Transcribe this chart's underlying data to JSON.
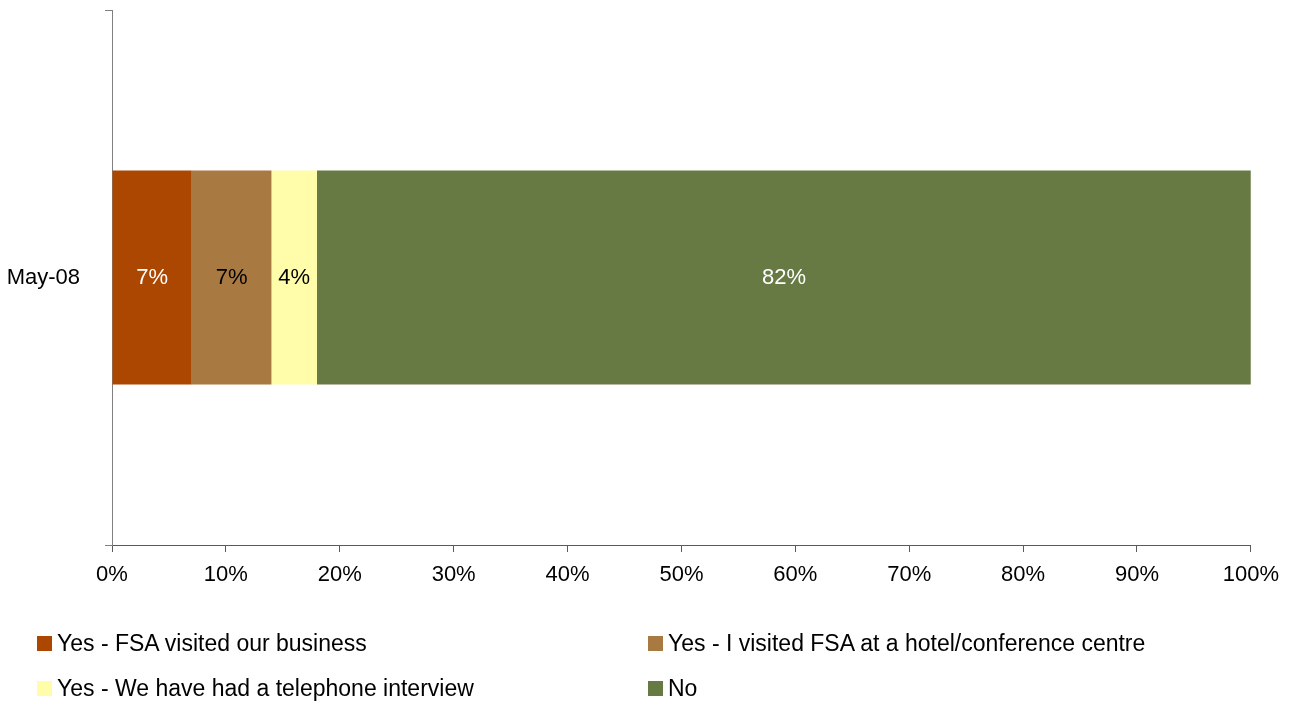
{
  "chart_data": {
    "type": "bar",
    "orientation": "horizontal",
    "stacked": true,
    "categories": [
      "May-08"
    ],
    "series": [
      {
        "name": "Yes - FSA visited our business",
        "color": "#ab4700",
        "values": [
          7
        ],
        "value_labels": [
          "7%"
        ]
      },
      {
        "name": "Yes - I visited FSA at a hotel/conference centre",
        "color": "#a97942",
        "values": [
          7
        ],
        "value_labels": [
          "7%"
        ]
      },
      {
        "name": "Yes - We have had a telephone interview",
        "color": "#fffcaa",
        "values": [
          4
        ],
        "value_labels": [
          "4%"
        ]
      },
      {
        "name": "No",
        "color": "#687a43",
        "values": [
          82
        ],
        "value_labels": [
          "82%"
        ]
      }
    ],
    "xlim": [
      0,
      100
    ],
    "xticks": [
      {
        "value": 0,
        "label": "0%"
      },
      {
        "value": 10,
        "label": "10%"
      },
      {
        "value": 20,
        "label": "20%"
      },
      {
        "value": 30,
        "label": "30%"
      },
      {
        "value": 40,
        "label": "40%"
      },
      {
        "value": 50,
        "label": "50%"
      },
      {
        "value": 60,
        "label": "60%"
      },
      {
        "value": 70,
        "label": "70%"
      },
      {
        "value": 80,
        "label": "80%"
      },
      {
        "value": 90,
        "label": "90%"
      },
      {
        "value": 100,
        "label": "100%"
      }
    ],
    "legend": "bottom"
  }
}
